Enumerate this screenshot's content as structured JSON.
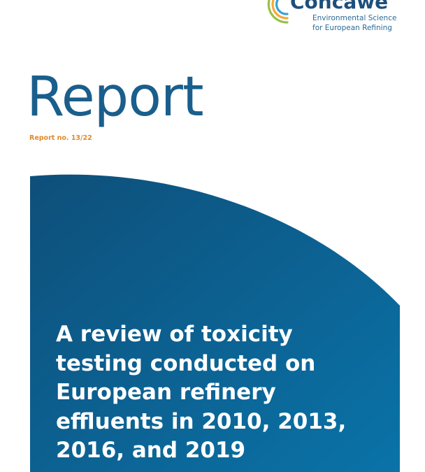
{
  "header": {
    "logo": {
      "name": "Concawe",
      "tagline_line1": "Environmental Science",
      "tagline_line2": "for European Refining"
    }
  },
  "cover": {
    "heading": "Report",
    "report_number": "Report no. 13/22",
    "title": "A review of toxicity testing conducted on European refinery effluents in 2010, 2013, 2016, and 2019"
  },
  "colors": {
    "brand_blue": "#1a5e8c",
    "hero_gradient_dark": "#0e4f7a",
    "hero_gradient_light": "#0a73a8",
    "accent_orange": "#e08a2c",
    "arc_green": "#9ac142",
    "arc_orange": "#f2a93b",
    "arc_blue": "#3aa0d3"
  }
}
